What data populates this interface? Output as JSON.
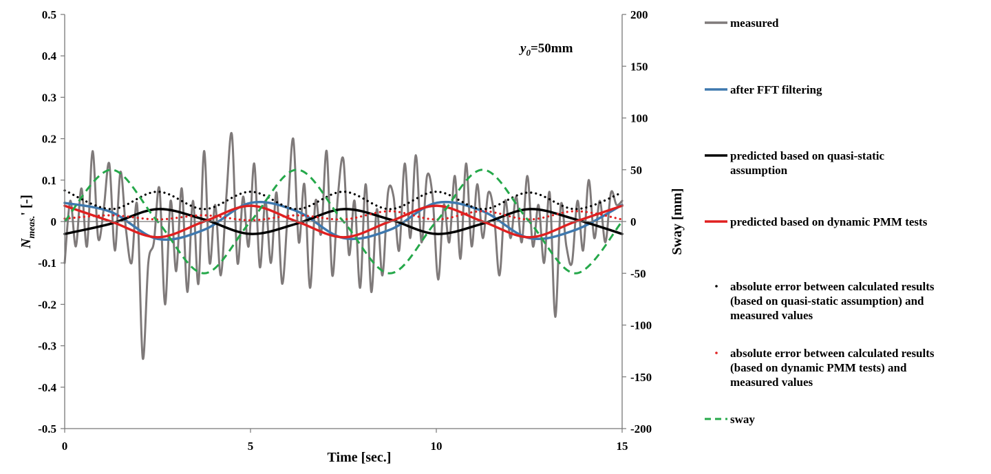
{
  "chart_data": {
    "type": "line",
    "title": "",
    "annotation": {
      "var": "y",
      "sub": "0",
      "rest": "=50mm"
    },
    "xlabel": "Time [sec.]",
    "ylabel": {
      "main": "N",
      "sub": "meas.",
      "rest": "' [-]"
    },
    "y2label": "Sway [mm]",
    "xlim": [
      0,
      15
    ],
    "ylim": [
      -0.5,
      0.5
    ],
    "y2lim": [
      -200,
      200
    ],
    "xticks": [
      "0",
      "5",
      "10",
      "15"
    ],
    "yticks": [
      "0.5",
      "0.4",
      "0.3",
      "0.2",
      "0.1",
      "0",
      "-0.1",
      "-0.2",
      "-0.3",
      "-0.4",
      "-0.5"
    ],
    "y2ticks": [
      "200",
      "150",
      "100",
      "50",
      "0",
      "-50",
      "-100",
      "-150",
      "-200"
    ],
    "grid": false,
    "legend_position": "right",
    "series": [
      {
        "name": "measured",
        "style": "solid",
        "color": "#7f7a7a",
        "x": [
          0,
          0.15,
          0.3,
          0.45,
          0.6,
          0.75,
          0.9,
          1.05,
          1.2,
          1.35,
          1.5,
          1.65,
          1.8,
          1.95,
          2.1,
          2.25,
          2.4,
          2.55,
          2.7,
          2.85,
          3.0,
          3.15,
          3.3,
          3.45,
          3.6,
          3.75,
          3.9,
          4.05,
          4.2,
          4.35,
          4.5,
          4.65,
          4.8,
          4.95,
          5.1,
          5.25,
          5.4,
          5.55,
          5.7,
          5.85,
          6.0,
          6.15,
          6.3,
          6.45,
          6.6,
          6.75,
          6.9,
          7.05,
          7.2,
          7.35,
          7.5,
          7.65,
          7.8,
          7.95,
          8.1,
          8.25,
          8.4,
          8.55,
          8.7,
          8.85,
          9.0,
          9.15,
          9.3,
          9.45,
          9.6,
          9.75,
          9.9,
          10.05,
          10.2,
          10.35,
          10.5,
          10.65,
          10.8,
          10.95,
          11.1,
          11.25,
          11.4,
          11.55,
          11.7,
          11.85,
          12.0,
          12.15,
          12.3,
          12.45,
          12.6,
          12.75,
          12.9,
          13.05,
          13.2,
          13.35,
          13.5,
          13.65,
          13.8,
          13.95,
          14.1,
          14.25,
          14.4,
          14.55,
          14.7,
          14.85,
          15.0
        ],
        "y": [
          -0.1,
          0.05,
          -0.06,
          0.08,
          -0.06,
          0.17,
          -0.04,
          0.03,
          0.14,
          -0.07,
          0.12,
          -0.02,
          -0.1,
          0.04,
          -0.33,
          -0.1,
          -0.05,
          0.08,
          -0.2,
          0.05,
          -0.12,
          0.08,
          -0.17,
          0.05,
          -0.15,
          0.17,
          -0.1,
          0.04,
          -0.13,
          0.06,
          0.21,
          -0.1,
          0.06,
          -0.06,
          0.14,
          -0.11,
          0.05,
          -0.1,
          0.07,
          -0.15,
          0.02,
          0.2,
          -0.05,
          0.09,
          -0.16,
          0.05,
          -0.03,
          0.17,
          -0.13,
          0.06,
          0.15,
          -0.08,
          0.05,
          -0.16,
          0.09,
          -0.17,
          0.03,
          -0.13,
          0.07,
          0.06,
          -0.07,
          0.14,
          -0.04,
          0.16,
          -0.05,
          0.11,
          0.06,
          -0.14,
          0.04,
          -0.05,
          0.11,
          -0.09,
          0.14,
          -0.06,
          0.09,
          -0.04,
          0.07,
          0.02,
          -0.13,
          0.05,
          -0.04,
          0.06,
          -0.05,
          0.11,
          -0.06,
          0.04,
          -0.1,
          0.07,
          -0.23,
          0.04,
          -0.06,
          -0.1,
          0.05,
          -0.07,
          0.1,
          -0.04,
          0.05,
          -0.05,
          0.07,
          0.04,
          0.05
        ]
      },
      {
        "name": "after FFT filtering",
        "style": "solid",
        "color": "#3e78ae",
        "x": [
          0,
          1.25,
          2.5,
          3.75,
          5.0,
          6.25,
          7.5,
          8.75,
          10.0,
          11.25,
          12.5,
          13.75,
          15.0
        ],
        "y": [
          0.045,
          0.023,
          -0.042,
          -0.02,
          0.045,
          0.025,
          -0.04,
          -0.02,
          0.045,
          0.025,
          -0.04,
          -0.02,
          0.04
        ]
      },
      {
        "name": "predicted based on quasi-static assumption",
        "style": "solid",
        "color": "#000000",
        "x": [
          0,
          1.25,
          2.5,
          3.75,
          5.0,
          6.25,
          7.5,
          8.75,
          10.0,
          11.25,
          12.5,
          13.75,
          15.0
        ],
        "y": [
          -0.03,
          -0.005,
          0.03,
          0.005,
          -0.03,
          -0.005,
          0.03,
          0.005,
          -0.03,
          -0.005,
          0.03,
          0.005,
          -0.03
        ]
      },
      {
        "name": "predicted based on dynamic PMM tests",
        "style": "solid",
        "color": "#e02020",
        "x": [
          0,
          1.25,
          2.5,
          3.75,
          5.0,
          6.25,
          7.5,
          8.75,
          10.0,
          11.25,
          12.5,
          13.75,
          15.0
        ],
        "y": [
          0.038,
          0.0,
          -0.038,
          0.0,
          0.038,
          0.0,
          -0.038,
          0.0,
          0.038,
          0.0,
          -0.038,
          0.0,
          0.038
        ]
      },
      {
        "name": "absolute error between calculated results (based on quasi-static assumption) and measured values",
        "style": "dotted",
        "color": "#000000",
        "x": [
          0,
          1.25,
          2.5,
          3.75,
          5.0,
          6.25,
          7.5,
          8.75,
          10.0,
          11.25,
          12.5,
          13.75,
          15.0
        ],
        "y": [
          0.075,
          0.03,
          0.072,
          0.03,
          0.072,
          0.03,
          0.072,
          0.03,
          0.072,
          0.03,
          0.07,
          0.03,
          0.07
        ]
      },
      {
        "name": "absolute error between calculated results (based on dynamic PMM tests) and measured values",
        "style": "dotted",
        "color": "#e02020",
        "x": [
          0,
          1.25,
          2.5,
          3.75,
          5.0,
          6.25,
          7.5,
          8.75,
          10.0,
          11.25,
          12.5,
          13.75,
          15.0
        ],
        "y": [
          0.007,
          0.015,
          0.005,
          0.015,
          0.003,
          0.015,
          0.005,
          0.025,
          0.005,
          0.025,
          0.005,
          0.025,
          0.005
        ]
      },
      {
        "name": "sway",
        "style": "dashed",
        "color": "#25a84a",
        "axis": "y2",
        "x": [
          0,
          1.25,
          2.5,
          3.75,
          5.0,
          6.25,
          7.5,
          8.75,
          10.0,
          11.25,
          12.5,
          13.75,
          15.0
        ],
        "y": [
          0,
          50,
          0,
          -50,
          0,
          50,
          0,
          -50,
          0,
          50,
          0,
          -50,
          0
        ]
      }
    ],
    "legend": [
      {
        "lines": [
          "measured"
        ],
        "marker": "line",
        "color": "#7f7a7a"
      },
      {
        "lines": [
          "after FFT filtering"
        ],
        "marker": "line",
        "color": "#3e78ae"
      },
      {
        "lines": [
          "predicted based on quasi-static",
          "assumption"
        ],
        "marker": "line",
        "color": "#000000"
      },
      {
        "lines": [
          "predicted based on dynamic PMM tests"
        ],
        "marker": "line",
        "color": "#e02020"
      },
      {
        "lines": [
          "absolute error between calculated results",
          "(based on quasi-static assumption) and",
          "measured values"
        ],
        "marker": "dot",
        "color": "#000000"
      },
      {
        "lines": [
          "absolute error between calculated results",
          "(based on dynamic PMM tests) and",
          "measured values"
        ],
        "marker": "dot",
        "color": "#e02020"
      },
      {
        "lines": [
          "sway"
        ],
        "marker": "dash",
        "color": "#25a84a"
      }
    ]
  }
}
